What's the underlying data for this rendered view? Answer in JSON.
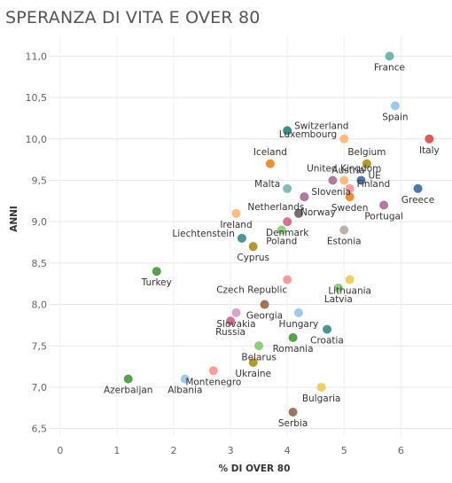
{
  "chart_data": {
    "type": "scatter",
    "title": "SPERANZA DI VITA E OVER 80",
    "xlabel": "% DI OVER 80",
    "ylabel": "ANNI",
    "xlim": [
      -0.2,
      6.9
    ],
    "ylim": [
      6.4,
      11.25
    ],
    "xticks": [
      "0",
      "1",
      "2",
      "3",
      "4",
      "5",
      "6"
    ],
    "yticks": [
      "6,5",
      "7,0",
      "7,5",
      "8,0",
      "8,5",
      "9,0",
      "9,5",
      "10,0",
      "10,5",
      "11,0"
    ],
    "grid": true,
    "points": [
      {
        "label": "France",
        "x": 5.8,
        "y": 11.0,
        "color": "#72b7b2",
        "anchor": "below"
      },
      {
        "label": "Spain",
        "x": 5.9,
        "y": 10.4,
        "color": "#9ecae9",
        "anchor": "below"
      },
      {
        "label": "Italy",
        "x": 6.5,
        "y": 10.0,
        "color": "#e15759",
        "anchor": "below"
      },
      {
        "label": "Switzerland",
        "x": 4.0,
        "y": 10.1,
        "color": "#3d8c86",
        "anchor": "right"
      },
      {
        "label": "Luxembourg",
        "x": 5.0,
        "y": 10.0,
        "color": "#ffbe7d",
        "anchor": "left"
      },
      {
        "label": "Iceland",
        "x": 3.7,
        "y": 9.7,
        "color": "#f28e2b",
        "anchor": "above"
      },
      {
        "label": "Belgium",
        "x": 5.4,
        "y": 9.7,
        "color": "#b6992d",
        "anchor": "above"
      },
      {
        "label": "United Kingdom",
        "x": 5.0,
        "y": 9.5,
        "color": "#ffbe7d",
        "anchor": "above"
      },
      {
        "label": "Austria",
        "x": 4.8,
        "y": 9.5,
        "color": "#b07aa1",
        "anchor": "above-right"
      },
      {
        "label": "UE",
        "x": 5.3,
        "y": 9.5,
        "color": "#4e79a7",
        "anchor": "right"
      },
      {
        "label": "Finland",
        "x": 5.1,
        "y": 9.4,
        "color": "#ff9da7",
        "anchor": "right"
      },
      {
        "label": "Malta",
        "x": 4.0,
        "y": 9.4,
        "color": "#86bcb6",
        "anchor": "left"
      },
      {
        "label": "Greece",
        "x": 6.3,
        "y": 9.4,
        "color": "#4e79a7",
        "anchor": "below"
      },
      {
        "label": "Slovenia",
        "x": 4.3,
        "y": 9.3,
        "color": "#79706e",
        "anchor": "right"
      },
      {
        "label": "Netherlands",
        "x": 4.3,
        "y": 9.3,
        "color": "#b07aa1",
        "anchor": "below-left"
      },
      {
        "label": "Sweden",
        "x": 5.1,
        "y": 9.3,
        "color": "#f28e2b",
        "anchor": "below"
      },
      {
        "label": "Portugal",
        "x": 5.7,
        "y": 9.2,
        "color": "#b07aa1",
        "anchor": "below"
      },
      {
        "label": "Norway",
        "x": 4.2,
        "y": 9.1,
        "color": "#79706e",
        "anchor": "right-down"
      },
      {
        "label": "Ireland",
        "x": 3.1,
        "y": 9.1,
        "color": "#ffbe7d",
        "anchor": "below"
      },
      {
        "label": "Denmark",
        "x": 4.0,
        "y": 9.0,
        "color": "#d37295",
        "anchor": "below"
      },
      {
        "label": "Estonia",
        "x": 5.0,
        "y": 8.9,
        "color": "#bab0ac",
        "anchor": "below"
      },
      {
        "label": "Poland",
        "x": 3.9,
        "y": 8.9,
        "color": "#8cd17d",
        "anchor": "below"
      },
      {
        "label": "Liechtenstein",
        "x": 3.2,
        "y": 8.8,
        "color": "#499894",
        "anchor": "left"
      },
      {
        "label": "Cyprus",
        "x": 3.4,
        "y": 8.7,
        "color": "#b6992d",
        "anchor": "below"
      },
      {
        "label": "Turkey",
        "x": 1.7,
        "y": 8.4,
        "color": "#59a14f",
        "anchor": "below"
      },
      {
        "label": "Czech Republic",
        "x": 4.0,
        "y": 8.3,
        "color": "#ff9d9a",
        "anchor": "below-left"
      },
      {
        "label": "Lithuania",
        "x": 5.1,
        "y": 8.3,
        "color": "#f1ce63",
        "anchor": "below"
      },
      {
        "label": "Latvia",
        "x": 4.9,
        "y": 8.2,
        "color": "#8cd17d",
        "anchor": "below"
      },
      {
        "label": "Georgia",
        "x": 3.6,
        "y": 8.0,
        "color": "#9d7660",
        "anchor": "below"
      },
      {
        "label": "Slovakia",
        "x": 3.1,
        "y": 7.9,
        "color": "#d4a6c8",
        "anchor": "below"
      },
      {
        "label": "Russia",
        "x": 3.0,
        "y": 7.8,
        "color": "#d37295",
        "anchor": "below"
      },
      {
        "label": "Hungary",
        "x": 4.2,
        "y": 7.9,
        "color": "#9ecae9",
        "anchor": "below"
      },
      {
        "label": "Croatia",
        "x": 4.7,
        "y": 7.7,
        "color": "#499894",
        "anchor": "below"
      },
      {
        "label": "Romania",
        "x": 4.1,
        "y": 7.6,
        "color": "#59a14f",
        "anchor": "below"
      },
      {
        "label": "Belarus",
        "x": 3.5,
        "y": 7.5,
        "color": "#8cd17d",
        "anchor": "below"
      },
      {
        "label": "Ukraine",
        "x": 3.4,
        "y": 7.3,
        "color": "#b6992d",
        "anchor": "below"
      },
      {
        "label": "Montenegro",
        "x": 2.7,
        "y": 7.2,
        "color": "#ff9d9a",
        "anchor": "below"
      },
      {
        "label": "Azerbaijan",
        "x": 1.2,
        "y": 7.1,
        "color": "#59a14f",
        "anchor": "below"
      },
      {
        "label": "Albania",
        "x": 2.2,
        "y": 7.1,
        "color": "#9ecae9",
        "anchor": "below"
      },
      {
        "label": "Bulgaria",
        "x": 4.6,
        "y": 7.0,
        "color": "#f1ce63",
        "anchor": "below"
      },
      {
        "label": "Serbia",
        "x": 4.1,
        "y": 6.7,
        "color": "#9d7660",
        "anchor": "below"
      }
    ]
  }
}
